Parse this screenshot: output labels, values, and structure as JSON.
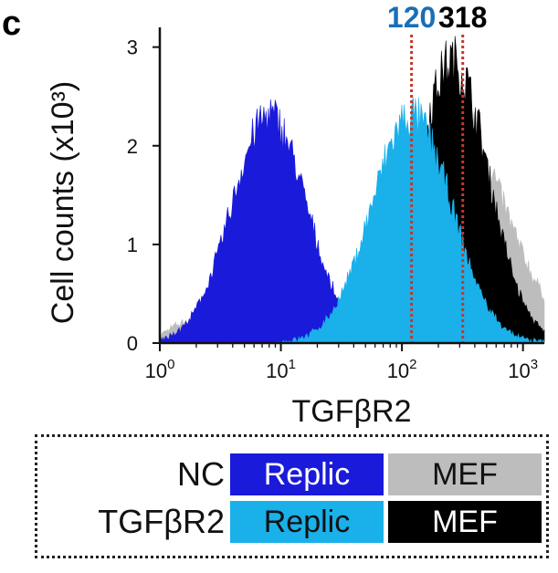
{
  "chart_data": {
    "type": "area",
    "panel_label": "c",
    "xlabel": "TGFβR2",
    "ylabel": "Cell counts (x10³)",
    "x_scale": "log",
    "xlim": [
      1,
      1500
    ],
    "ylim": [
      0,
      3.2
    ],
    "x_ticks": [
      {
        "value": 1,
        "base": "10",
        "exp": "0"
      },
      {
        "value": 10,
        "base": "10",
        "exp": "1"
      },
      {
        "value": 100,
        "base": "10",
        "exp": "2"
      },
      {
        "value": 1000,
        "base": "10",
        "exp": "3"
      }
    ],
    "y_ticks": [
      0,
      1,
      2,
      3
    ],
    "series": [
      {
        "group": "NC",
        "cell": "MEF",
        "color": "#bdbdbd",
        "peak_x": 250,
        "peak_y": 2.4,
        "width": 0.43,
        "x": [
          1,
          1.5,
          2,
          3,
          5,
          10,
          30,
          60,
          100,
          150,
          250,
          400,
          600,
          1000,
          1500
        ],
        "y": [
          0.15,
          0.3,
          0.45,
          0.35,
          0.2,
          0.12,
          0.1,
          0.4,
          1.1,
          1.8,
          2.4,
          2.2,
          1.2,
          0.3,
          0.05
        ]
      },
      {
        "group": "TGFβR2",
        "cell": "MEF",
        "color": "#000000",
        "peak_x": 260,
        "peak_y": 2.85,
        "width": 0.3,
        "x": [
          60,
          100,
          150,
          200,
          260,
          330,
          400,
          550,
          700,
          1000,
          1300,
          1500
        ],
        "y": [
          0.05,
          0.5,
          1.6,
          2.5,
          2.85,
          2.6,
          2.2,
          1.3,
          0.7,
          0.2,
          0.05,
          0.02
        ]
      },
      {
        "group": "NC",
        "cell": "Replic",
        "color": "#1a1adb",
        "peak_x": 8,
        "peak_y": 2.3,
        "width": 0.31,
        "x": [
          1.5,
          2,
          3,
          4,
          6,
          8,
          11,
          15,
          20,
          30,
          40
        ],
        "y": [
          0.05,
          0.25,
          0.8,
          1.4,
          2.05,
          2.3,
          2.05,
          1.4,
          0.8,
          0.25,
          0.05
        ]
      },
      {
        "group": "TGFβR2",
        "cell": "Replic",
        "color": "#1ab0ea",
        "peak_x": 120,
        "peak_y": 2.3,
        "width": 0.33,
        "x": [
          20,
          30,
          50,
          80,
          120,
          160,
          200,
          280,
          350,
          500,
          700
        ],
        "y": [
          0.02,
          0.3,
          1.2,
          2.05,
          2.3,
          2.2,
          1.9,
          1.2,
          0.7,
          0.15,
          0.02
        ]
      }
    ],
    "markers": [
      {
        "x": 120,
        "label": "120",
        "color": "#1a6fb5"
      },
      {
        "x": 318,
        "label": "318",
        "color": "#000000"
      }
    ],
    "marker_line_color": "#c0392b"
  },
  "legend": {
    "rows": [
      {
        "label": "NC",
        "boxes": [
          {
            "text": "Replic",
            "bg": "#1a1adb",
            "fg": "#ffffff"
          },
          {
            "text": "MEF",
            "bg": "#bdbdbd",
            "fg": "#111111"
          }
        ]
      },
      {
        "label": "TGFβR2",
        "boxes": [
          {
            "text": "Replic",
            "bg": "#1ab0ea",
            "fg": "#111111"
          },
          {
            "text": "MEF",
            "bg": "#000000",
            "fg": "#ffffff"
          }
        ]
      }
    ]
  }
}
